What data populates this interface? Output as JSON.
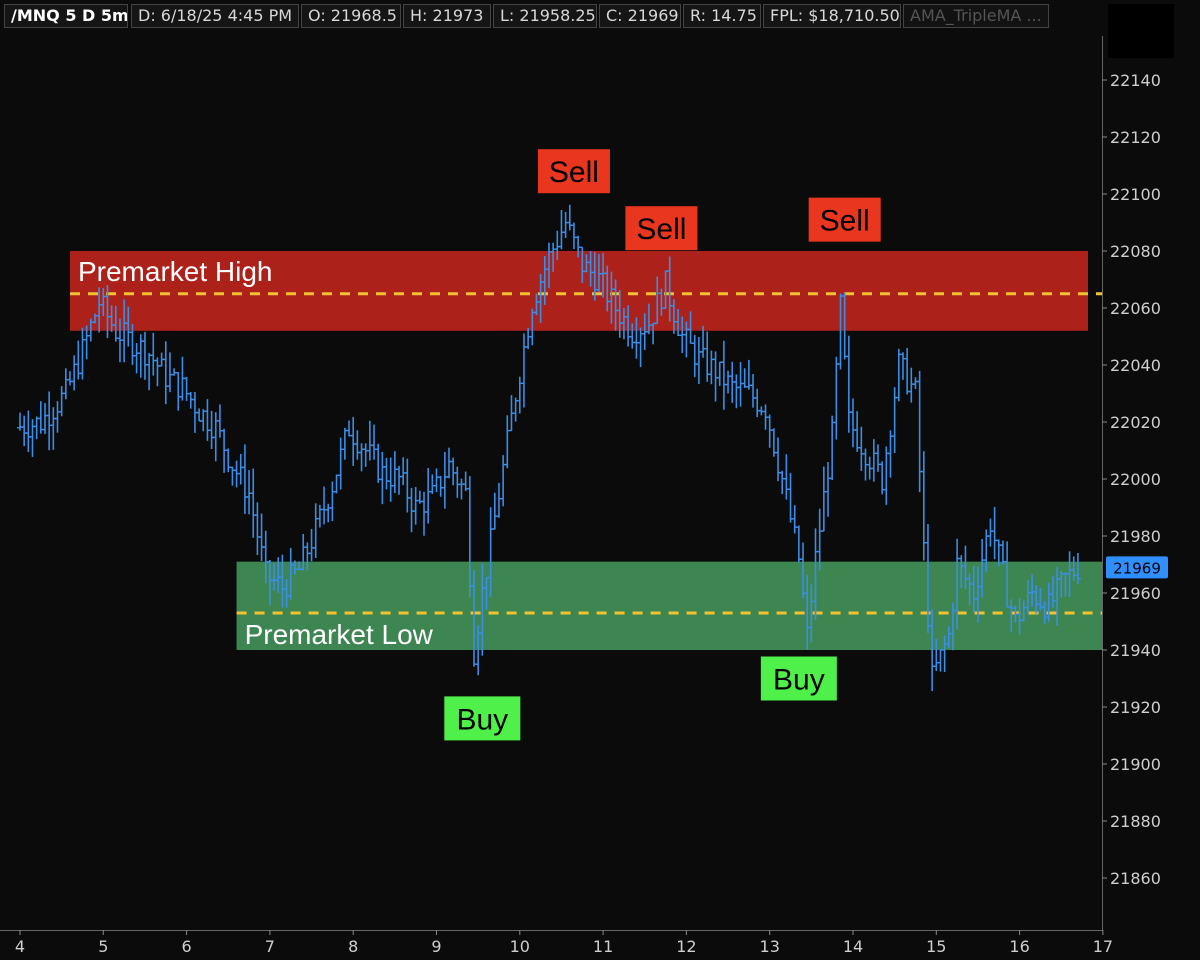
{
  "header": {
    "symbol": "/MNQ 5 D 5m",
    "date": "D: 6/18/25 4:45 PM",
    "open": "O: 21968.5",
    "high": "H: 21973",
    "low": "L: 21958.25",
    "close": "C: 21969",
    "range": "R: 14.75",
    "fpl": "FPL: $18,710.50",
    "study": "AMA_TripleMA ..."
  },
  "colors": {
    "background": "#0b0b0b",
    "bars": "#3a8ee6",
    "resistance_zone": "#b3221c",
    "support_zone": "#3f8a55",
    "dashed_level": "#f2c230",
    "sell_label_bg": "#e8361f",
    "buy_label_bg": "#4ff04a",
    "price_tag_bg": "#2f8fff"
  },
  "chart_data": {
    "type": "ohlc",
    "y_ticks": [
      "22140",
      "22120",
      "22100",
      "22080",
      "22060",
      "22040",
      "22020",
      "22000",
      "21980",
      "21960",
      "21940",
      "21920",
      "21900",
      "21880",
      "21860"
    ],
    "ylim": [
      21848,
      22155
    ],
    "x_ticks": [
      "4",
      "5",
      "6",
      "7",
      "8",
      "9",
      "10",
      "11",
      "12",
      "13",
      "14",
      "15",
      "16",
      "17"
    ],
    "xlim": [
      4,
      17
    ],
    "last_price": "21969",
    "zones": [
      {
        "name": "Premarket High",
        "type": "resistance",
        "top": 22080,
        "bottom": 22052,
        "level": 22065,
        "x_start": 4.6
      },
      {
        "name": "Premarket Low",
        "type": "support",
        "top": 21971,
        "bottom": 21940,
        "level": 21953,
        "x_start": 6.6
      }
    ],
    "annotations": [
      {
        "text": "Sell",
        "kind": "sell",
        "x": 10.65,
        "y": 22108
      },
      {
        "text": "Sell",
        "kind": "sell",
        "x": 11.7,
        "y": 22088
      },
      {
        "text": "Sell",
        "kind": "sell",
        "x": 13.9,
        "y": 22091
      },
      {
        "text": "Buy",
        "kind": "buy",
        "x": 9.55,
        "y": 21916
      },
      {
        "text": "Buy",
        "kind": "buy",
        "x": 13.35,
        "y": 21930
      }
    ],
    "series_points": [
      [
        4.0,
        22018
      ],
      [
        4.3,
        22020
      ],
      [
        4.6,
        22030
      ],
      [
        4.8,
        22045
      ],
      [
        5.0,
        22062
      ],
      [
        5.2,
        22052
      ],
      [
        5.4,
        22048
      ],
      [
        5.6,
        22044
      ],
      [
        5.8,
        22036
      ],
      [
        6.0,
        22032
      ],
      [
        6.2,
        22024
      ],
      [
        6.4,
        22018
      ],
      [
        6.6,
        22005
      ],
      [
        6.8,
        21995
      ],
      [
        7.0,
        21966
      ],
      [
        7.2,
        21962
      ],
      [
        7.4,
        21968
      ],
      [
        7.6,
        21982
      ],
      [
        7.8,
        21998
      ],
      [
        8.0,
        22018
      ],
      [
        8.2,
        22010
      ],
      [
        8.4,
        22002
      ],
      [
        8.6,
        22000
      ],
      [
        8.8,
        21990
      ],
      [
        9.0,
        21994
      ],
      [
        9.2,
        22005
      ],
      [
        9.4,
        21995
      ],
      [
        9.5,
        21940
      ],
      [
        9.6,
        21960
      ],
      [
        9.8,
        21995
      ],
      [
        10.0,
        22030
      ],
      [
        10.2,
        22062
      ],
      [
        10.4,
        22078
      ],
      [
        10.6,
        22090
      ],
      [
        10.8,
        22075
      ],
      [
        11.0,
        22070
      ],
      [
        11.2,
        22060
      ],
      [
        11.4,
        22052
      ],
      [
        11.6,
        22055
      ],
      [
        11.8,
        22068
      ],
      [
        12.0,
        22050
      ],
      [
        12.2,
        22042
      ],
      [
        12.4,
        22038
      ],
      [
        12.6,
        22032
      ],
      [
        12.8,
        22030
      ],
      [
        13.0,
        22025
      ],
      [
        13.2,
        22000
      ],
      [
        13.4,
        21972
      ],
      [
        13.5,
        21945
      ],
      [
        13.6,
        21972
      ],
      [
        13.8,
        22015
      ],
      [
        13.9,
        22060
      ],
      [
        14.0,
        22020
      ],
      [
        14.2,
        22010
      ],
      [
        14.4,
        22000
      ],
      [
        14.6,
        22040
      ],
      [
        14.8,
        22030
      ],
      [
        14.9,
        21975
      ],
      [
        15.0,
        21930
      ],
      [
        15.2,
        21945
      ],
      [
        15.3,
        21970
      ],
      [
        15.5,
        21960
      ],
      [
        15.7,
        21985
      ],
      [
        15.9,
        21960
      ],
      [
        16.0,
        21950
      ],
      [
        16.2,
        21960
      ],
      [
        16.4,
        21955
      ],
      [
        16.6,
        21965
      ],
      [
        16.75,
        21969
      ]
    ]
  }
}
